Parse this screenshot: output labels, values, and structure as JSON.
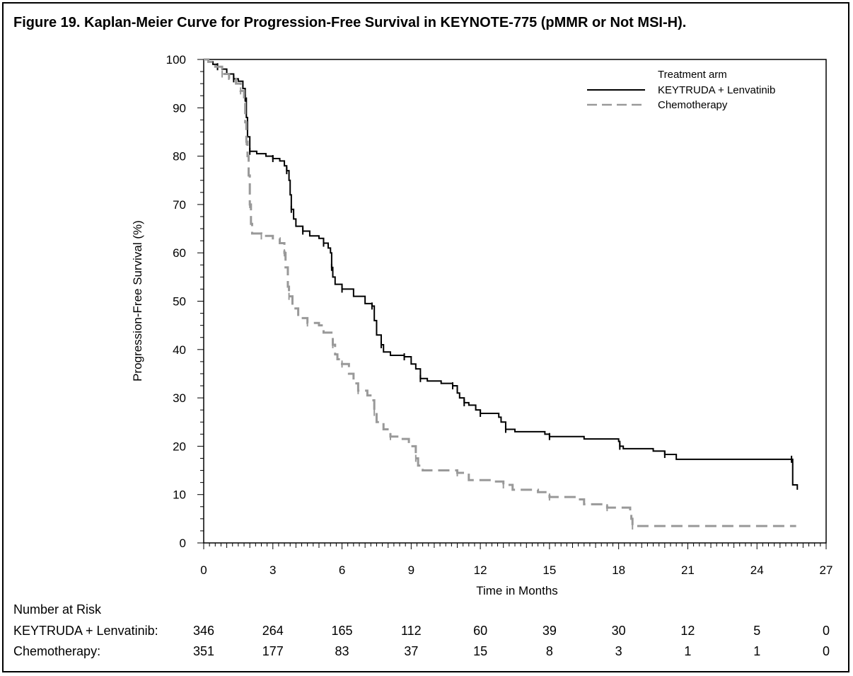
{
  "title": "Figure 19. Kaplan-Meier Curve for Progression-Free Survival in KEYNOTE-775 (pMMR or Not MSI-H).",
  "chart_data": {
    "type": "line",
    "xlabel": "Time in Months",
    "ylabel": "Progression-Free Survival (%)",
    "xlim": [
      0,
      27
    ],
    "ylim": [
      0,
      100
    ],
    "x_ticks": [
      "0",
      "3",
      "6",
      "9",
      "12",
      "15",
      "18",
      "21",
      "24",
      "27"
    ],
    "y_ticks": [
      "0",
      "10",
      "20",
      "30",
      "40",
      "50",
      "60",
      "70",
      "80",
      "90",
      "100"
    ],
    "legend": {
      "title": "Treatment arm",
      "placement": "top-right"
    },
    "series": [
      {
        "name": "KEYTRUDA + Lenvatinib",
        "color": "#000000",
        "style": "solid",
        "points": [
          [
            0,
            100
          ],
          [
            0.2,
            99.5
          ],
          [
            0.4,
            99
          ],
          [
            0.6,
            98.5
          ],
          [
            0.8,
            98
          ],
          [
            1.0,
            97
          ],
          [
            1.3,
            96
          ],
          [
            1.5,
            95.5
          ],
          [
            1.7,
            94
          ],
          [
            1.8,
            92
          ],
          [
            1.85,
            88
          ],
          [
            1.9,
            84
          ],
          [
            2.0,
            81
          ],
          [
            2.3,
            80.5
          ],
          [
            2.7,
            80
          ],
          [
            3.0,
            79.5
          ],
          [
            3.3,
            79
          ],
          [
            3.5,
            78
          ],
          [
            3.6,
            77
          ],
          [
            3.7,
            75
          ],
          [
            3.75,
            72
          ],
          [
            3.8,
            69
          ],
          [
            3.9,
            67
          ],
          [
            4.0,
            65.5
          ],
          [
            4.3,
            64.5
          ],
          [
            4.6,
            63.5
          ],
          [
            5.0,
            63
          ],
          [
            5.2,
            62
          ],
          [
            5.4,
            61
          ],
          [
            5.5,
            60
          ],
          [
            5.55,
            57
          ],
          [
            5.6,
            55
          ],
          [
            5.7,
            53.5
          ],
          [
            6.0,
            52.5
          ],
          [
            6.5,
            51
          ],
          [
            7.0,
            49.5
          ],
          [
            7.3,
            49
          ],
          [
            7.4,
            46
          ],
          [
            7.5,
            43
          ],
          [
            7.7,
            41
          ],
          [
            7.8,
            39.5
          ],
          [
            8.1,
            38.8
          ],
          [
            8.7,
            38.5
          ],
          [
            9.0,
            37
          ],
          [
            9.2,
            36
          ],
          [
            9.4,
            34
          ],
          [
            9.7,
            33.5
          ],
          [
            10.3,
            33
          ],
          [
            10.8,
            32.5
          ],
          [
            11.0,
            31
          ],
          [
            11.1,
            30
          ],
          [
            11.3,
            29
          ],
          [
            11.5,
            28.5
          ],
          [
            11.8,
            27.5
          ],
          [
            12.0,
            26.8
          ],
          [
            12.8,
            26
          ],
          [
            12.9,
            25
          ],
          [
            13.1,
            23.5
          ],
          [
            13.5,
            23
          ],
          [
            14.8,
            22.5
          ],
          [
            15.0,
            22
          ],
          [
            16.5,
            21.5
          ],
          [
            18.0,
            21
          ],
          [
            18.05,
            20
          ],
          [
            18.2,
            19.5
          ],
          [
            19.5,
            19
          ],
          [
            20.0,
            18.3
          ],
          [
            20.5,
            17.3
          ],
          [
            23.0,
            17.3
          ],
          [
            25.5,
            17.3
          ],
          [
            25.55,
            12
          ],
          [
            25.75,
            11
          ]
        ]
      },
      {
        "name": "Chemotherapy",
        "color": "#999999",
        "style": "dashed",
        "points": [
          [
            0,
            100
          ],
          [
            0.2,
            99.5
          ],
          [
            0.5,
            98.5
          ],
          [
            0.8,
            97
          ],
          [
            1.1,
            96
          ],
          [
            1.4,
            95
          ],
          [
            1.6,
            93.5
          ],
          [
            1.75,
            91
          ],
          [
            1.8,
            87
          ],
          [
            1.85,
            83
          ],
          [
            1.9,
            80
          ],
          [
            1.95,
            76
          ],
          [
            2.0,
            70
          ],
          [
            2.05,
            66
          ],
          [
            2.1,
            64
          ],
          [
            2.5,
            63.5
          ],
          [
            3.0,
            63
          ],
          [
            3.3,
            62
          ],
          [
            3.5,
            60
          ],
          [
            3.55,
            57
          ],
          [
            3.65,
            53
          ],
          [
            3.7,
            51
          ],
          [
            3.85,
            48.5
          ],
          [
            4.1,
            46.5
          ],
          [
            4.5,
            45.5
          ],
          [
            5.0,
            45
          ],
          [
            5.2,
            43.5
          ],
          [
            5.6,
            41
          ],
          [
            5.7,
            39
          ],
          [
            5.8,
            38
          ],
          [
            6.0,
            37
          ],
          [
            6.3,
            35
          ],
          [
            6.5,
            33
          ],
          [
            6.7,
            31.5
          ],
          [
            7.1,
            30.5
          ],
          [
            7.3,
            29.5
          ],
          [
            7.4,
            27
          ],
          [
            7.5,
            25
          ],
          [
            7.8,
            23.5
          ],
          [
            8.1,
            22
          ],
          [
            8.5,
            21.5
          ],
          [
            8.9,
            20
          ],
          [
            9.2,
            17.5
          ],
          [
            9.3,
            16
          ],
          [
            9.5,
            15
          ],
          [
            11.0,
            14.5
          ],
          [
            11.5,
            13
          ],
          [
            12.5,
            12.7
          ],
          [
            13.0,
            12
          ],
          [
            13.4,
            11
          ],
          [
            14.5,
            10.5
          ],
          [
            15.0,
            9.5
          ],
          [
            16.2,
            9
          ],
          [
            16.5,
            8
          ],
          [
            17.5,
            7.3
          ],
          [
            18.5,
            6.5
          ],
          [
            18.55,
            5
          ],
          [
            18.6,
            3.5
          ],
          [
            25.5,
            3.5
          ],
          [
            25.7,
            3.5
          ]
        ]
      }
    ]
  },
  "risk_table": {
    "heading": "Number at Risk",
    "rows": [
      {
        "label": "KEYTRUDA + Lenvatinib:",
        "values": [
          "346",
          "264",
          "165",
          "112",
          "60",
          "39",
          "30",
          "12",
          "5",
          "0"
        ]
      },
      {
        "label": "Chemotherapy:",
        "values": [
          "351",
          "177",
          "83",
          "37",
          "15",
          "8",
          "3",
          "1",
          "1",
          "0"
        ]
      }
    ]
  }
}
